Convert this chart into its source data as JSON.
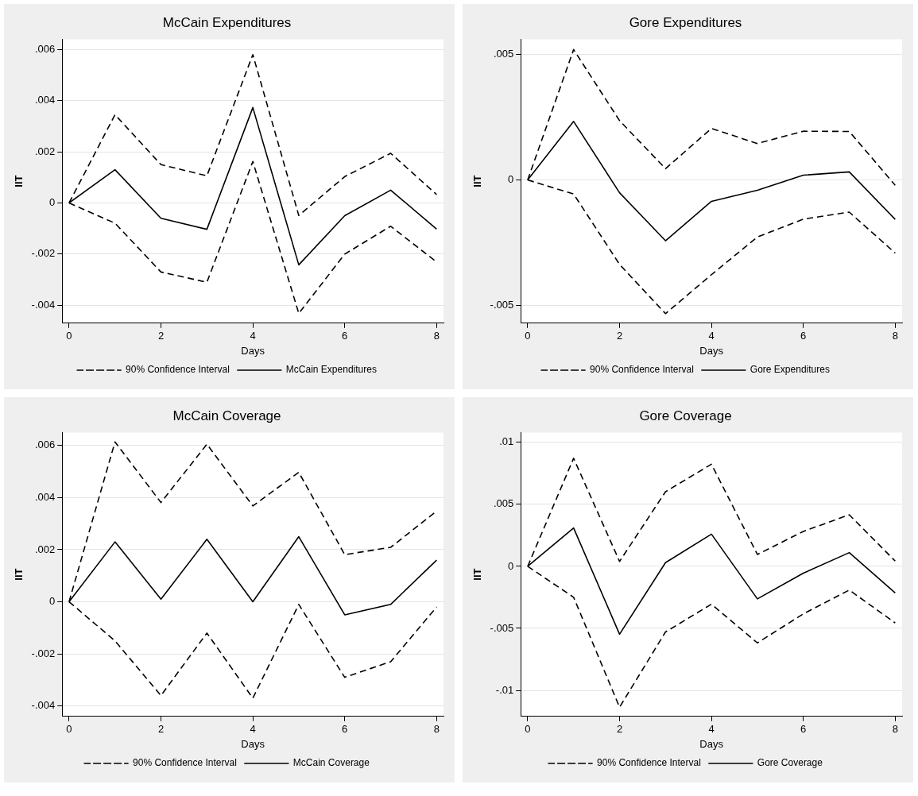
{
  "chart_data": [
    {
      "type": "line",
      "title": "McCain Expenditures",
      "xlabel": "Days",
      "ylabel": "IIT",
      "x": [
        0,
        1,
        2,
        3,
        4,
        5,
        6,
        7,
        8
      ],
      "xlim": [
        -0.15,
        8.15
      ],
      "xticks": [
        0,
        2,
        4,
        6,
        8
      ],
      "ylim": [
        -0.0047,
        0.0064
      ],
      "yticks": [
        {
          "value": -0.004,
          "label": "-.004"
        },
        {
          "value": -0.002,
          "label": "-.002"
        },
        {
          "value": 0,
          "label": "0"
        },
        {
          "value": 0.002,
          "label": ".002"
        },
        {
          "value": 0.004,
          "label": ".004"
        },
        {
          "value": 0.006,
          "label": ".006"
        }
      ],
      "grid": "y",
      "legend": "bottom",
      "marker": "none",
      "series": [
        {
          "name": "90% Confidence Interval",
          "color": "#000000",
          "line_style": "dashed",
          "values": [
            0,
            0.00345,
            0.0015,
            0.00106,
            0.0058,
            -0.00049,
            0.00103,
            0.00194,
            0.00033
          ]
        },
        {
          "name": "McCain Expenditures",
          "color": "#000000",
          "line_style": "solid",
          "values": [
            0,
            0.0013,
            -0.0006,
            -0.00103,
            0.00373,
            -0.00242,
            -0.0005,
            0.0005,
            -0.00102
          ]
        },
        {
          "color": "#000000",
          "line_style": "dashed",
          "values": [
            0,
            -0.00079,
            -0.0027,
            -0.0031,
            0.00162,
            -0.00432,
            -0.002,
            -0.00091,
            -0.00231
          ]
        }
      ]
    },
    {
      "type": "line",
      "title": "Gore Expenditures",
      "xlabel": "Days",
      "ylabel": "IIT",
      "x": [
        0,
        1,
        2,
        3,
        4,
        5,
        6,
        7,
        8
      ],
      "xlim": [
        -0.15,
        8.15
      ],
      "xticks": [
        0,
        2,
        4,
        6,
        8
      ],
      "ylim": [
        -0.0057,
        0.0056
      ],
      "yticks": [
        {
          "value": -0.005,
          "label": "-.005"
        },
        {
          "value": 0,
          "label": "0"
        },
        {
          "value": 0.005,
          "label": ".005"
        }
      ],
      "grid": "y",
      "legend": "bottom",
      "marker": "none",
      "series": [
        {
          "name": "90% Confidence Interval",
          "color": "#000000",
          "line_style": "dashed",
          "values": [
            0,
            0.00519,
            0.00236,
            0.00045,
            0.00205,
            0.00145,
            0.00194,
            0.00193,
            -0.00021
          ]
        },
        {
          "name": "Gore Expenditures",
          "color": "#000000",
          "line_style": "solid",
          "values": [
            0,
            0.00233,
            -0.00051,
            -0.00242,
            -0.00085,
            -0.00041,
            0.00019,
            0.00032,
            -0.00157
          ]
        },
        {
          "color": "#000000",
          "line_style": "dashed",
          "values": [
            0,
            -0.00056,
            -0.00336,
            -0.00532,
            -0.00377,
            -0.00227,
            -0.00156,
            -0.00128,
            -0.00291
          ]
        }
      ]
    },
    {
      "type": "line",
      "title": "McCain Coverage",
      "xlabel": "Days",
      "ylabel": "IIT",
      "x": [
        0,
        1,
        2,
        3,
        4,
        5,
        6,
        7,
        8
      ],
      "xlim": [
        -0.15,
        8.15
      ],
      "xticks": [
        0,
        2,
        4,
        6,
        8
      ],
      "ylim": [
        -0.0044,
        0.0065
      ],
      "yticks": [
        {
          "value": -0.004,
          "label": "-.004"
        },
        {
          "value": -0.002,
          "label": "-.002"
        },
        {
          "value": 0,
          "label": "0"
        },
        {
          "value": 0.002,
          "label": ".002"
        },
        {
          "value": 0.004,
          "label": ".004"
        },
        {
          "value": 0.006,
          "label": ".006"
        }
      ],
      "grid": "y",
      "legend": "bottom",
      "marker": "none",
      "series": [
        {
          "name": "90% Confidence Interval",
          "color": "#000000",
          "line_style": "dashed",
          "values": [
            0,
            0.00614,
            0.00381,
            0.00605,
            0.00368,
            0.00497,
            0.00181,
            0.00209,
            0.00348
          ]
        },
        {
          "name": "McCain Coverage",
          "color": "#000000",
          "line_style": "solid",
          "values": [
            0,
            0.0023,
            0.0001,
            0.0024,
            0,
            0.0025,
            -0.0005,
            -0.0001,
            0.0016
          ]
        },
        {
          "color": "#000000",
          "line_style": "dashed",
          "values": [
            0,
            -0.0015,
            -0.0036,
            -0.0012,
            -0.0037,
            -0.0001,
            -0.0029,
            -0.0023,
            -0.0002
          ]
        }
      ]
    },
    {
      "type": "line",
      "title": "Gore Coverage",
      "xlabel": "Days",
      "ylabel": "IIT",
      "x": [
        0,
        1,
        2,
        3,
        4,
        5,
        6,
        7,
        8
      ],
      "xlim": [
        -0.15,
        8.15
      ],
      "xticks": [
        0,
        2,
        4,
        6,
        8
      ],
      "ylim": [
        -0.0121,
        0.0108
      ],
      "yticks": [
        {
          "value": -0.01,
          "label": "-.01"
        },
        {
          "value": -0.005,
          "label": "-.005"
        },
        {
          "value": 0,
          "label": "0"
        },
        {
          "value": 0.005,
          "label": ".005"
        },
        {
          "value": 0.01,
          "label": ".01"
        }
      ],
      "grid": "y",
      "legend": "bottom",
      "marker": "none",
      "series": [
        {
          "name": "90% Confidence Interval",
          "color": "#000000",
          "line_style": "dashed",
          "values": [
            0,
            0.00872,
            0.0004,
            0.00602,
            0.00824,
            0.00096,
            0.00282,
            0.00416,
            0.00043
          ]
        },
        {
          "name": "Gore Coverage",
          "color": "#000000",
          "line_style": "solid",
          "values": [
            0,
            0.0031,
            -0.00547,
            0.0003,
            0.0026,
            -0.00262,
            -0.00055,
            0.00111,
            -0.00214
          ]
        },
        {
          "color": "#000000",
          "line_style": "dashed",
          "values": [
            0,
            -0.00249,
            -0.01136,
            -0.00529,
            -0.00305,
            -0.00617,
            -0.00383,
            -0.00191,
            -0.00456
          ]
        }
      ]
    }
  ]
}
